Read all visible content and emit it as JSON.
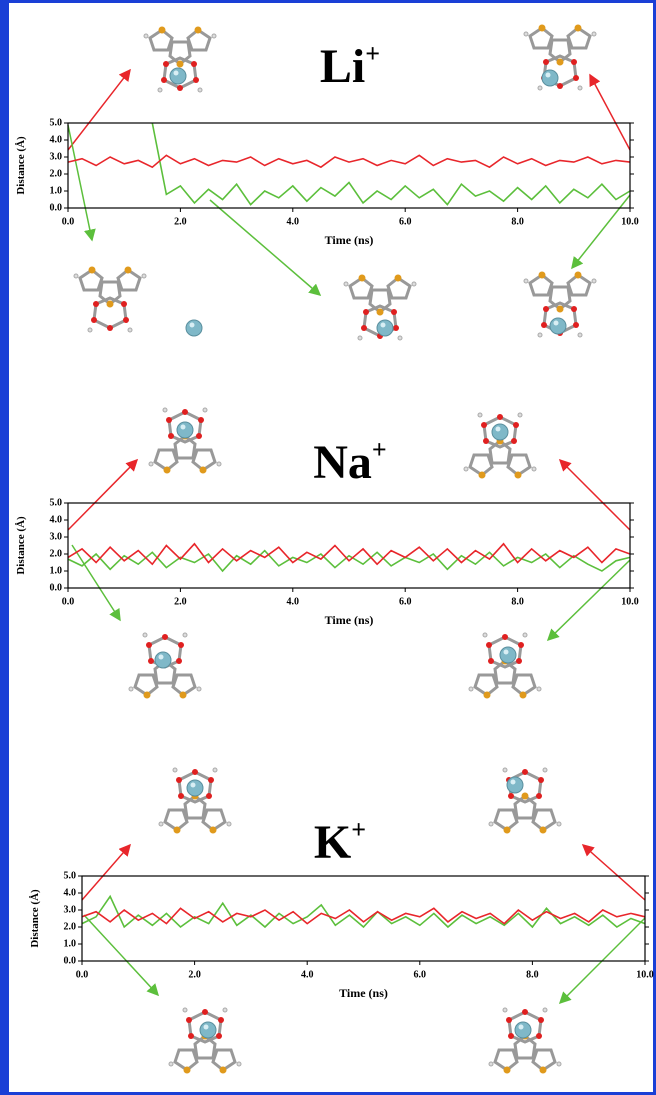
{
  "chart_data": [
    {
      "type": "line",
      "title": "Li",
      "title_sup": "+",
      "x_label": "Time (ns)",
      "y_label": "Distance (Å)",
      "x": [
        0,
        0.25,
        0.5,
        0.75,
        1,
        1.25,
        1.5,
        1.75,
        2,
        2.25,
        2.5,
        2.75,
        3,
        3.25,
        3.5,
        3.75,
        4,
        4.25,
        4.5,
        4.75,
        5,
        5.25,
        5.5,
        5.75,
        6,
        6.25,
        6.5,
        6.75,
        7,
        7.25,
        7.5,
        7.75,
        8,
        8.25,
        8.5,
        8.75,
        9,
        9.25,
        9.5,
        9.75,
        10
      ],
      "xlim": [
        0,
        10
      ],
      "ylim": [
        0,
        5
      ],
      "xticks": [
        {
          "value": 0,
          "label": "0.0"
        },
        {
          "value": 2,
          "label": "2.0"
        },
        {
          "value": 4,
          "label": "4.0"
        },
        {
          "value": 6,
          "label": "6.0"
        },
        {
          "value": 8,
          "label": "8.0"
        },
        {
          "value": 10,
          "label": "10.0"
        }
      ],
      "yticks": [
        {
          "value": 0,
          "label": "0.0"
        },
        {
          "value": 1,
          "label": "1.0"
        },
        {
          "value": 2,
          "label": "2.0"
        },
        {
          "value": 3,
          "label": "3.0"
        },
        {
          "value": 4,
          "label": "4.0"
        },
        {
          "value": 5,
          "label": "5.0"
        }
      ],
      "series": [
        {
          "color": "#5cbf3c",
          "values": [
            null,
            null,
            null,
            null,
            null,
            null,
            5.0,
            0.8,
            1.3,
            0.3,
            1.1,
            0.5,
            1.4,
            0.2,
            1.0,
            0.6,
            1.3,
            0.4,
            1.2,
            0.7,
            1.5,
            0.3,
            1.0,
            0.5,
            1.3,
            0.6,
            1.1,
            0.2,
            1.4,
            0.7,
            1.0,
            0.4,
            1.2,
            0.5,
            1.3,
            0.3,
            1.1,
            0.6,
            1.4,
            0.5,
            1.0
          ]
        },
        {
          "color": "#e8262b",
          "values": [
            2.7,
            2.9,
            2.5,
            3.0,
            2.6,
            2.8,
            2.4,
            3.1,
            2.6,
            2.9,
            2.5,
            2.8,
            2.7,
            3.0,
            2.5,
            2.9,
            2.6,
            2.8,
            2.4,
            3.0,
            2.7,
            2.9,
            2.5,
            2.8,
            2.6,
            3.1,
            2.5,
            2.9,
            2.7,
            2.8,
            2.4,
            3.0,
            2.6,
            2.9,
            2.5,
            2.8,
            2.7,
            3.0,
            2.6,
            2.8,
            2.7
          ]
        }
      ]
    },
    {
      "type": "line",
      "title": "Na",
      "title_sup": "+",
      "x_label": "Time (ns)",
      "y_label": "Distance (Å)",
      "x": [
        0,
        0.25,
        0.5,
        0.75,
        1,
        1.25,
        1.5,
        1.75,
        2,
        2.25,
        2.5,
        2.75,
        3,
        3.25,
        3.5,
        3.75,
        4,
        4.25,
        4.5,
        4.75,
        5,
        5.25,
        5.5,
        5.75,
        6,
        6.25,
        6.5,
        6.75,
        7,
        7.25,
        7.5,
        7.75,
        8,
        8.25,
        8.5,
        8.75,
        9,
        9.25,
        9.5,
        9.75,
        10
      ],
      "xlim": [
        0,
        10
      ],
      "ylim": [
        0,
        5
      ],
      "xticks": [
        {
          "value": 0,
          "label": "0.0"
        },
        {
          "value": 2,
          "label": "2.0"
        },
        {
          "value": 4,
          "label": "4.0"
        },
        {
          "value": 6,
          "label": "6.0"
        },
        {
          "value": 8,
          "label": "8.0"
        },
        {
          "value": 10,
          "label": "10.0"
        }
      ],
      "yticks": [
        {
          "value": 0,
          "label": "0.0"
        },
        {
          "value": 1,
          "label": "1.0"
        },
        {
          "value": 2,
          "label": "2.0"
        },
        {
          "value": 3,
          "label": "3.0"
        },
        {
          "value": 4,
          "label": "4.0"
        },
        {
          "value": 5,
          "label": "5.0"
        }
      ],
      "series": [
        {
          "color": "#5cbf3c",
          "values": [
            1.7,
            1.3,
            2.0,
            1.1,
            1.9,
            1.4,
            2.1,
            1.2,
            1.8,
            1.5,
            2.0,
            1.0,
            1.9,
            1.4,
            2.2,
            1.3,
            1.8,
            1.5,
            2.0,
            1.2,
            1.9,
            1.4,
            2.1,
            1.3,
            1.8,
            1.5,
            2.0,
            1.1,
            1.9,
            1.4,
            2.1,
            1.3,
            1.8,
            1.5,
            2.0,
            1.2,
            1.9,
            1.4,
            1.0,
            1.6,
            1.8
          ]
        },
        {
          "color": "#e8262b",
          "values": [
            1.8,
            2.3,
            1.5,
            2.4,
            1.6,
            2.2,
            1.4,
            2.5,
            1.7,
            2.6,
            1.5,
            2.3,
            1.6,
            2.2,
            1.8,
            2.4,
            1.5,
            2.1,
            1.7,
            2.5,
            1.6,
            2.3,
            1.4,
            2.2,
            1.8,
            2.4,
            1.6,
            2.3,
            1.5,
            2.2,
            1.7,
            2.6,
            1.5,
            2.3,
            1.6,
            2.2,
            1.8,
            2.4,
            1.5,
            2.3,
            2.0
          ]
        }
      ]
    },
    {
      "type": "line",
      "title": "K",
      "title_sup": "+",
      "x_label": "Time (ns)",
      "y_label": "Distance (Å)",
      "x": [
        0,
        0.25,
        0.5,
        0.75,
        1,
        1.25,
        1.5,
        1.75,
        2,
        2.25,
        2.5,
        2.75,
        3,
        3.25,
        3.5,
        3.75,
        4,
        4.25,
        4.5,
        4.75,
        5,
        5.25,
        5.5,
        5.75,
        6,
        6.25,
        6.5,
        6.75,
        7,
        7.25,
        7.5,
        7.75,
        8,
        8.25,
        8.5,
        8.75,
        9,
        9.25,
        9.5,
        9.75,
        10
      ],
      "xlim": [
        0,
        10
      ],
      "ylim": [
        0,
        5
      ],
      "xticks": [
        {
          "value": 0,
          "label": "0.0"
        },
        {
          "value": 2,
          "label": "2.0"
        },
        {
          "value": 4,
          "label": "4.0"
        },
        {
          "value": 6,
          "label": "6.0"
        },
        {
          "value": 8,
          "label": "8.0"
        },
        {
          "value": 10,
          "label": "10.0"
        }
      ],
      "yticks": [
        {
          "value": 0,
          "label": "0.0"
        },
        {
          "value": 1,
          "label": "1.0"
        },
        {
          "value": 2,
          "label": "2.0"
        },
        {
          "value": 3,
          "label": "3.0"
        },
        {
          "value": 4,
          "label": "4.0"
        },
        {
          "value": 5,
          "label": "5.0"
        }
      ],
      "series": [
        {
          "color": "#5cbf3c",
          "values": [
            2.2,
            2.6,
            3.8,
            2.0,
            2.7,
            2.1,
            2.8,
            2.0,
            2.6,
            2.2,
            3.4,
            2.1,
            2.7,
            2.0,
            2.8,
            2.2,
            2.6,
            3.3,
            2.1,
            2.7,
            2.0,
            2.9,
            2.2,
            2.6,
            2.1,
            2.8,
            2.0,
            2.7,
            2.2,
            2.6,
            2.1,
            2.8,
            2.0,
            3.1,
            2.2,
            2.6,
            2.1,
            2.7,
            2.0,
            2.5,
            2.2
          ]
        },
        {
          "color": "#e8262b",
          "values": [
            2.6,
            2.9,
            2.3,
            3.0,
            2.4,
            2.8,
            2.2,
            3.1,
            2.5,
            2.9,
            2.3,
            2.8,
            2.6,
            3.0,
            2.4,
            2.9,
            2.2,
            2.8,
            2.5,
            3.0,
            2.3,
            2.9,
            2.4,
            2.8,
            2.6,
            3.1,
            2.3,
            2.9,
            2.5,
            2.8,
            2.2,
            3.0,
            2.4,
            2.9,
            2.5,
            2.8,
            2.3,
            3.0,
            2.6,
            2.8,
            2.6
          ]
        }
      ]
    }
  ]
}
